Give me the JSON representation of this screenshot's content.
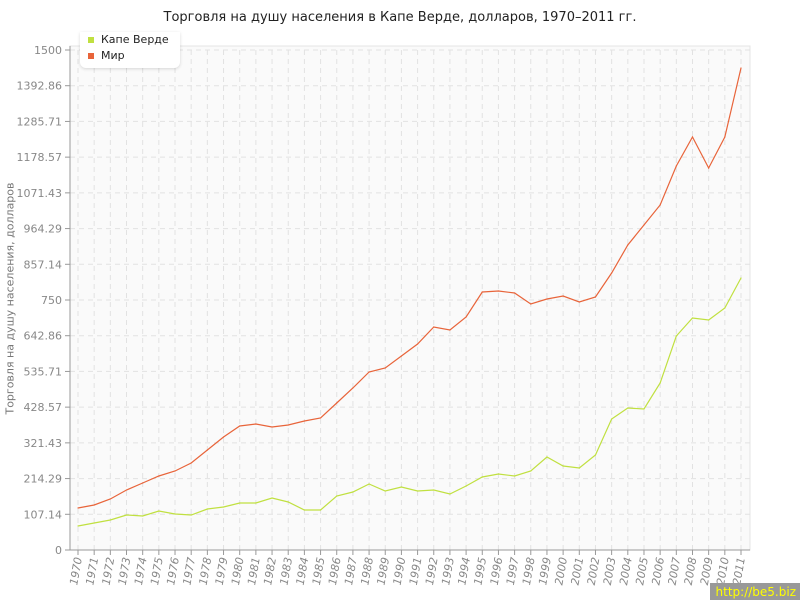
{
  "chart_data": {
    "type": "line",
    "title": "Торговля на душу населения в Капе Верде, долларов, 1970–2011 гг.",
    "ylabel": "Торговля на душу населения, долларов",
    "xlabel": "",
    "ylim": [
      0,
      1500
    ],
    "yticks": [
      "0",
      "107.14",
      "214.29",
      "321.43",
      "428.57",
      "535.71",
      "642.86",
      "750",
      "857.14",
      "964.29",
      "1071.43",
      "1178.57",
      "1285.71",
      "1392.86",
      "1500"
    ],
    "grid": true,
    "legend": "top-left",
    "x": [
      1970,
      1971,
      1972,
      1973,
      1974,
      1975,
      1976,
      1977,
      1978,
      1979,
      1980,
      1981,
      1982,
      1983,
      1984,
      1985,
      1986,
      1987,
      1988,
      1989,
      1990,
      1991,
      1992,
      1993,
      1994,
      1995,
      1996,
      1997,
      1998,
      1999,
      2000,
      2001,
      2002,
      2003,
      2004,
      2005,
      2006,
      2007,
      2008,
      2009,
      2010,
      2011
    ],
    "series": [
      {
        "name": "Капе Верде",
        "color": "#c0e040",
        "values": [
          72,
          81,
          90,
          105,
          102,
          117,
          108,
          105,
          123,
          129,
          141,
          141,
          156,
          144,
          120,
          120,
          162,
          174,
          198,
          177,
          189,
          177,
          180,
          168,
          192,
          219,
          228,
          222,
          237,
          279,
          252,
          246,
          285,
          393,
          426,
          423,
          501,
          642,
          696,
          690,
          726,
          816
        ]
      },
      {
        "name": "Мир",
        "color": "#e8643a",
        "values": [
          126,
          135,
          153,
          180,
          201,
          222,
          237,
          261,
          300,
          339,
          372,
          378,
          369,
          375,
          387,
          396,
          441,
          486,
          534,
          546,
          582,
          618,
          669,
          660,
          699,
          774,
          777,
          771,
          738,
          753,
          762,
          744,
          759,
          831,
          915,
          975,
          1035,
          1152,
          1239,
          1146,
          1239,
          1446
        ]
      }
    ]
  },
  "watermark": "http://be5.biz"
}
